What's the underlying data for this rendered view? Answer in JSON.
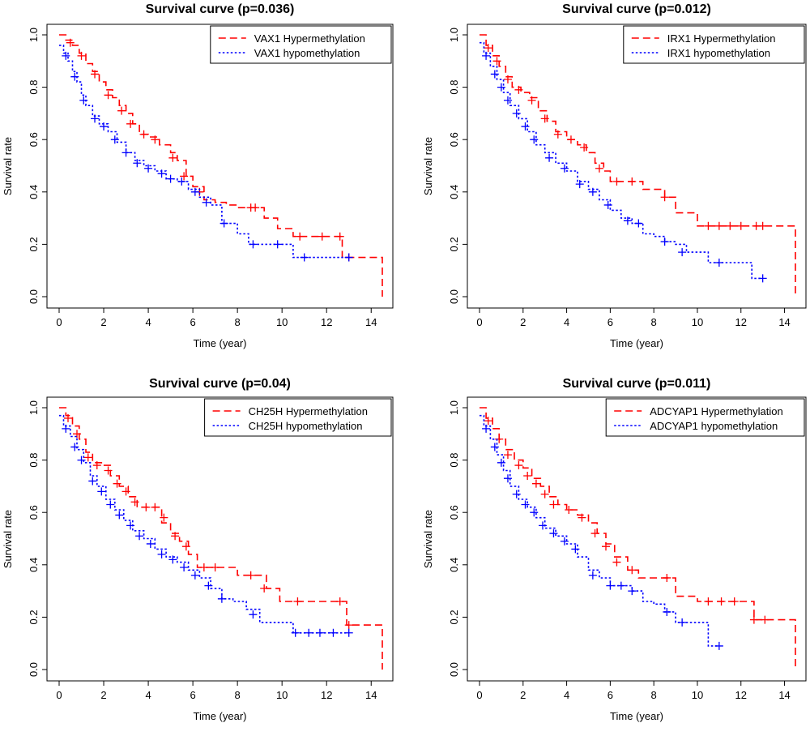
{
  "colors": {
    "hyper": "#ff0000",
    "hypo": "#0000ff",
    "axis": "#000000"
  },
  "chart_data": [
    {
      "type": "line",
      "title": "Survival curve (p=0.036)",
      "xlabel": "Time (year)",
      "ylabel": "Survival rate",
      "xlim": [
        0,
        14.5
      ],
      "ylim": [
        0,
        1
      ],
      "xticks": [
        "0",
        "2",
        "4",
        "6",
        "8",
        "10",
        "12",
        "14"
      ],
      "yticks": [
        "0.0",
        "0.2",
        "0.4",
        "0.6",
        "0.8",
        "1.0"
      ],
      "grid": false,
      "legend_position": "top-right",
      "series": [
        {
          "name": "VAX1 Hypermethylation",
          "style": "dashed",
          "color": "#ff0000",
          "x": [
            0,
            0.3,
            0.6,
            0.9,
            1.2,
            1.5,
            1.8,
            2.1,
            2.4,
            2.7,
            3.0,
            3.3,
            3.6,
            4.0,
            4.5,
            5.0,
            5.3,
            5.7,
            6.0,
            6.5,
            7.0,
            7.5,
            8.0,
            8.8,
            9.2,
            9.8,
            10.5,
            11.5,
            12.5,
            12.7,
            13.5,
            14.5,
            14.5
          ],
          "y": [
            1.0,
            0.98,
            0.96,
            0.93,
            0.89,
            0.86,
            0.82,
            0.79,
            0.76,
            0.73,
            0.7,
            0.66,
            0.62,
            0.61,
            0.58,
            0.55,
            0.52,
            0.46,
            0.42,
            0.37,
            0.36,
            0.35,
            0.34,
            0.34,
            0.3,
            0.26,
            0.23,
            0.23,
            0.23,
            0.15,
            0.15,
            0.15,
            0.0
          ],
          "censor_x": [
            0.5,
            1.0,
            1.6,
            2.2,
            2.8,
            3.2,
            3.8,
            4.3,
            5.1,
            5.6,
            6.3,
            8.6,
            8.8,
            10.8,
            11.8,
            12.6,
            13.0
          ],
          "censor_y": [
            0.97,
            0.92,
            0.85,
            0.77,
            0.71,
            0.66,
            0.62,
            0.6,
            0.53,
            0.46,
            0.4,
            0.34,
            0.34,
            0.23,
            0.23,
            0.23,
            0.15
          ]
        },
        {
          "name": "VAX1 hypomethylation",
          "style": "dotted",
          "color": "#0000ff",
          "x": [
            0,
            0.2,
            0.4,
            0.6,
            0.8,
            1.0,
            1.2,
            1.5,
            1.8,
            2.2,
            2.6,
            3.0,
            3.4,
            3.8,
            4.3,
            4.8,
            5.3,
            5.8,
            6.3,
            6.8,
            7.3,
            8.0,
            8.5,
            9.5,
            10.5,
            11.0,
            11.5,
            12.5,
            13.0
          ],
          "y": [
            0.96,
            0.93,
            0.9,
            0.86,
            0.82,
            0.77,
            0.73,
            0.69,
            0.66,
            0.63,
            0.59,
            0.55,
            0.52,
            0.5,
            0.48,
            0.45,
            0.44,
            0.41,
            0.38,
            0.35,
            0.28,
            0.24,
            0.2,
            0.2,
            0.15,
            0.15,
            0.15,
            0.15,
            0.15
          ],
          "censor_x": [
            0.3,
            0.7,
            1.1,
            1.6,
            2.0,
            2.5,
            3.0,
            3.5,
            4.0,
            4.6,
            5.0,
            5.5,
            6.1,
            6.6,
            7.4,
            8.7,
            9.8,
            11.0,
            13.0
          ],
          "censor_y": [
            0.92,
            0.84,
            0.75,
            0.68,
            0.65,
            0.6,
            0.55,
            0.51,
            0.49,
            0.47,
            0.45,
            0.44,
            0.4,
            0.36,
            0.28,
            0.2,
            0.2,
            0.15,
            0.15
          ]
        }
      ]
    },
    {
      "type": "line",
      "title": "Survival curve (p=0.012)",
      "xlabel": "Time (year)",
      "ylabel": "Survival rate",
      "xlim": [
        0,
        14.5
      ],
      "ylim": [
        0,
        1
      ],
      "xticks": [
        "0",
        "2",
        "4",
        "6",
        "8",
        "10",
        "12",
        "14"
      ],
      "yticks": [
        "0.0",
        "0.2",
        "0.4",
        "0.6",
        "0.8",
        "1.0"
      ],
      "grid": false,
      "legend_position": "top-right",
      "series": [
        {
          "name": "IRX1 Hypermethylation",
          "style": "dashed",
          "color": "#ff0000",
          "x": [
            0,
            0.3,
            0.6,
            0.9,
            1.2,
            1.5,
            1.9,
            2.3,
            2.7,
            3.1,
            3.5,
            4.0,
            4.5,
            4.9,
            5.3,
            5.7,
            6.0,
            6.5,
            7.0,
            7.5,
            8.5,
            9.0,
            10.0,
            11.0,
            12.0,
            13.0,
            14.5,
            14.5
          ],
          "y": [
            1.0,
            0.96,
            0.92,
            0.88,
            0.84,
            0.8,
            0.78,
            0.76,
            0.71,
            0.67,
            0.63,
            0.6,
            0.58,
            0.55,
            0.51,
            0.48,
            0.44,
            0.44,
            0.44,
            0.41,
            0.38,
            0.32,
            0.27,
            0.27,
            0.27,
            0.27,
            0.27,
            0.0
          ],
          "censor_x": [
            0.4,
            0.8,
            1.3,
            1.8,
            2.4,
            3.0,
            3.6,
            4.2,
            4.8,
            5.5,
            6.3,
            7.0,
            8.5,
            10.5,
            11.0,
            11.5,
            12.0,
            12.7,
            13.0
          ],
          "censor_y": [
            0.95,
            0.9,
            0.83,
            0.79,
            0.75,
            0.68,
            0.62,
            0.6,
            0.57,
            0.49,
            0.44,
            0.44,
            0.38,
            0.27,
            0.27,
            0.27,
            0.27,
            0.27,
            0.27
          ]
        },
        {
          "name": "IRX1 hypomethylation",
          "style": "dotted",
          "color": "#0000ff",
          "x": [
            0,
            0.2,
            0.5,
            0.8,
            1.1,
            1.4,
            1.8,
            2.2,
            2.6,
            3.0,
            3.5,
            4.0,
            4.5,
            5.0,
            5.5,
            6.0,
            6.5,
            7.0,
            7.5,
            8.0,
            8.5,
            9.0,
            9.5,
            10.5,
            11.0,
            12.0,
            12.5,
            13.0
          ],
          "y": [
            0.97,
            0.93,
            0.88,
            0.83,
            0.78,
            0.73,
            0.68,
            0.63,
            0.58,
            0.55,
            0.51,
            0.48,
            0.44,
            0.41,
            0.37,
            0.33,
            0.3,
            0.28,
            0.24,
            0.23,
            0.21,
            0.2,
            0.17,
            0.13,
            0.13,
            0.13,
            0.07,
            0.07
          ],
          "censor_x": [
            0.3,
            0.7,
            1.0,
            1.3,
            1.7,
            2.1,
            2.5,
            3.2,
            3.9,
            4.6,
            5.2,
            5.9,
            6.8,
            7.3,
            8.5,
            9.3,
            11.0,
            13.0
          ],
          "censor_y": [
            0.92,
            0.85,
            0.8,
            0.75,
            0.7,
            0.65,
            0.6,
            0.53,
            0.49,
            0.43,
            0.4,
            0.35,
            0.29,
            0.28,
            0.21,
            0.17,
            0.13,
            0.07
          ]
        }
      ]
    },
    {
      "type": "line",
      "title": "Survival curve (p=0.04)",
      "xlabel": "Time (year)",
      "ylabel": "Survival rate",
      "xlim": [
        0,
        14.5
      ],
      "ylim": [
        0,
        1
      ],
      "xticks": [
        "0",
        "2",
        "4",
        "6",
        "8",
        "10",
        "12",
        "14"
      ],
      "yticks": [
        "0.0",
        "0.2",
        "0.4",
        "0.6",
        "0.8",
        "1.0"
      ],
      "grid": false,
      "legend_position": "top-right",
      "series": [
        {
          "name": "CH25H Hypermethylation",
          "style": "dashed",
          "color": "#ff0000",
          "x": [
            0,
            0.3,
            0.6,
            0.9,
            1.2,
            1.5,
            1.9,
            2.3,
            2.7,
            3.1,
            3.5,
            4.0,
            4.6,
            5.0,
            5.4,
            5.8,
            6.2,
            6.8,
            7.2,
            8.0,
            8.9,
            9.3,
            9.9,
            11.0,
            12.6,
            12.9,
            14.5,
            14.5
          ],
          "y": [
            1.0,
            0.97,
            0.93,
            0.88,
            0.83,
            0.79,
            0.78,
            0.74,
            0.7,
            0.66,
            0.62,
            0.62,
            0.56,
            0.52,
            0.49,
            0.44,
            0.39,
            0.39,
            0.39,
            0.36,
            0.36,
            0.31,
            0.26,
            0.26,
            0.26,
            0.17,
            0.17,
            0.0
          ],
          "censor_x": [
            0.4,
            0.8,
            1.3,
            1.7,
            2.2,
            2.6,
            3.0,
            3.4,
            3.9,
            4.3,
            4.7,
            5.2,
            5.7,
            6.5,
            7.0,
            8.6,
            9.2,
            10.7,
            12.6,
            13.0
          ],
          "censor_y": [
            0.96,
            0.9,
            0.81,
            0.78,
            0.76,
            0.71,
            0.68,
            0.64,
            0.62,
            0.62,
            0.58,
            0.51,
            0.47,
            0.39,
            0.39,
            0.36,
            0.31,
            0.26,
            0.26,
            0.17
          ]
        },
        {
          "name": "CH25H hypomethylation",
          "style": "dotted",
          "color": "#0000ff",
          "x": [
            0,
            0.2,
            0.5,
            0.8,
            1.1,
            1.4,
            1.7,
            2.1,
            2.5,
            2.9,
            3.3,
            3.8,
            4.3,
            4.8,
            5.3,
            5.8,
            6.3,
            6.8,
            7.3,
            7.8,
            8.4,
            9.0,
            9.5,
            10.5,
            11.0,
            12.0,
            13.0
          ],
          "y": [
            0.97,
            0.93,
            0.89,
            0.84,
            0.79,
            0.74,
            0.7,
            0.65,
            0.61,
            0.57,
            0.53,
            0.5,
            0.46,
            0.43,
            0.41,
            0.38,
            0.35,
            0.31,
            0.27,
            0.26,
            0.23,
            0.18,
            0.18,
            0.14,
            0.14,
            0.14,
            0.14
          ],
          "censor_x": [
            0.3,
            0.7,
            1.0,
            1.5,
            1.9,
            2.3,
            2.7,
            3.2,
            3.6,
            4.1,
            4.6,
            5.1,
            5.6,
            6.1,
            6.7,
            7.3,
            8.7,
            10.6,
            11.2,
            11.7,
            12.3,
            13.0
          ],
          "censor_y": [
            0.92,
            0.85,
            0.8,
            0.72,
            0.68,
            0.63,
            0.59,
            0.55,
            0.51,
            0.48,
            0.44,
            0.42,
            0.39,
            0.36,
            0.32,
            0.27,
            0.21,
            0.14,
            0.14,
            0.14,
            0.14,
            0.14
          ]
        }
      ]
    },
    {
      "type": "line",
      "title": "Survival curve (p=0.011)",
      "xlabel": "Time (year)",
      "ylabel": "Survival rate",
      "xlim": [
        0,
        14.5
      ],
      "ylim": [
        0,
        1
      ],
      "xticks": [
        "0",
        "2",
        "4",
        "6",
        "8",
        "10",
        "12",
        "14"
      ],
      "yticks": [
        "0.0",
        "0.2",
        "0.4",
        "0.6",
        "0.8",
        "1.0"
      ],
      "grid": false,
      "legend_position": "top-right",
      "series": [
        {
          "name": "ADCYAP1 Hypermethylation",
          "style": "dashed",
          "color": "#ff0000",
          "x": [
            0,
            0.3,
            0.6,
            0.9,
            1.2,
            1.6,
            2.0,
            2.4,
            2.8,
            3.2,
            3.6,
            4.0,
            4.5,
            5.0,
            5.4,
            5.8,
            6.2,
            6.8,
            7.3,
            8.0,
            9.0,
            10.0,
            11.0,
            12.0,
            12.6,
            13.0,
            14.5,
            14.5
          ],
          "y": [
            1.0,
            0.96,
            0.92,
            0.88,
            0.84,
            0.8,
            0.77,
            0.73,
            0.7,
            0.66,
            0.63,
            0.61,
            0.59,
            0.56,
            0.52,
            0.48,
            0.43,
            0.38,
            0.35,
            0.35,
            0.28,
            0.26,
            0.26,
            0.26,
            0.19,
            0.19,
            0.19,
            0.0
          ],
          "censor_x": [
            0.4,
            0.9,
            1.3,
            1.8,
            2.2,
            2.6,
            3.0,
            3.4,
            4.1,
            4.7,
            5.3,
            5.8,
            6.3,
            7.0,
            8.6,
            10.5,
            11.1,
            11.7,
            12.6,
            13.1
          ],
          "censor_y": [
            0.95,
            0.88,
            0.82,
            0.78,
            0.74,
            0.71,
            0.67,
            0.63,
            0.61,
            0.58,
            0.52,
            0.47,
            0.41,
            0.38,
            0.35,
            0.26,
            0.26,
            0.26,
            0.19,
            0.19
          ]
        },
        {
          "name": "ADCYAP1 hypomethylation",
          "style": "dotted",
          "color": "#0000ff",
          "x": [
            0,
            0.2,
            0.5,
            0.8,
            1.1,
            1.4,
            1.8,
            2.2,
            2.6,
            3.0,
            3.5,
            4.0,
            4.5,
            5.0,
            5.5,
            6.0,
            6.5,
            7.0,
            7.5,
            8.0,
            8.5,
            9.0,
            10.0,
            10.5,
            11.0
          ],
          "y": [
            0.97,
            0.93,
            0.88,
            0.82,
            0.76,
            0.7,
            0.65,
            0.62,
            0.58,
            0.54,
            0.51,
            0.48,
            0.43,
            0.38,
            0.35,
            0.32,
            0.32,
            0.3,
            0.26,
            0.25,
            0.22,
            0.18,
            0.18,
            0.09,
            0.09
          ],
          "censor_x": [
            0.3,
            0.7,
            1.0,
            1.3,
            1.7,
            2.1,
            2.5,
            2.9,
            3.4,
            3.9,
            4.4,
            5.2,
            6.0,
            6.5,
            7.0,
            8.6,
            9.3,
            11.0
          ],
          "censor_y": [
            0.92,
            0.85,
            0.79,
            0.73,
            0.67,
            0.63,
            0.6,
            0.55,
            0.52,
            0.49,
            0.46,
            0.36,
            0.32,
            0.32,
            0.3,
            0.22,
            0.18,
            0.09
          ]
        }
      ]
    }
  ]
}
